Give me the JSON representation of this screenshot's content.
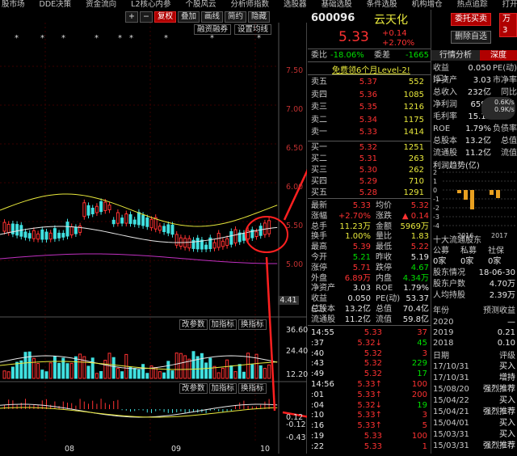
{
  "menu": [
    "股市场",
    "DDE决策",
    "资金流向",
    "L2核心内参",
    "个股风云",
    "分析师指数",
    "选股器",
    "基础选股",
    "条件选股",
    "机构增仓",
    "热点追踪",
    "打开"
  ],
  "toolbar": {
    "plus": "+",
    "minus": "−",
    "fq": "复权",
    "overlay": "叠加",
    "draw": "画线",
    "simple": "简约",
    "hide": "隐藏"
  },
  "subtabs": {
    "margin": "融资融券",
    "params": "设置均线"
  },
  "chart": {
    "y_labels": [
      "7.50",
      "7.00",
      "6.50",
      "6.00",
      "5.50",
      "5.00"
    ],
    "current_price_box": "4.41",
    "vol_labels": [
      "36.60",
      "24.40",
      "12.20"
    ],
    "macd_labels": [
      "0.12",
      "-0.12",
      "-0.43"
    ],
    "ind_tabs": [
      "改参数",
      "加指标",
      "换指标"
    ],
    "x_dates": [
      "08",
      "09",
      "10"
    ],
    "star": "*"
  },
  "stock": {
    "code": "600096",
    "name": "云天化",
    "price": "5.33",
    "change": "+0.14",
    "change_pct": "+2.70%",
    "btn_order": "委托买卖",
    "btn_remove": "删除自选",
    "btn_watch": "万3"
  },
  "order_ratio": {
    "label1": "委比",
    "val1": "-18.06%",
    "label2": "委差",
    "val2": "-1665"
  },
  "banner": "免费领6个月Level-2!",
  "asks": [
    {
      "label": "卖五",
      "price": "5.37",
      "vol": "552"
    },
    {
      "label": "卖四",
      "price": "5.36",
      "vol": "1085"
    },
    {
      "label": "卖三",
      "price": "5.35",
      "vol": "1216"
    },
    {
      "label": "卖二",
      "price": "5.34",
      "vol": "1175"
    },
    {
      "label": "卖一",
      "price": "5.33",
      "vol": "1414"
    }
  ],
  "bids": [
    {
      "label": "买一",
      "price": "5.32",
      "vol": "1251"
    },
    {
      "label": "买二",
      "price": "5.31",
      "vol": "263"
    },
    {
      "label": "买三",
      "price": "5.30",
      "vol": "262"
    },
    {
      "label": "买四",
      "price": "5.29",
      "vol": "710"
    },
    {
      "label": "买五",
      "price": "5.28",
      "vol": "1291"
    }
  ],
  "stats": [
    {
      "k1": "最新",
      "v1": "5.33",
      "c1": "red",
      "k2": "均价",
      "v2": "5.32",
      "c2": "red"
    },
    {
      "k1": "涨幅",
      "v1": "+2.70%",
      "c1": "red",
      "k2": "涨跌",
      "v2": "▲ 0.14",
      "c2": "red"
    },
    {
      "k1": "总手",
      "v1": "11.23万",
      "c1": "yel",
      "k2": "金额",
      "v2": "5969万",
      "c2": "yel"
    },
    {
      "k1": "换手",
      "v1": "1.00%",
      "c1": "yel",
      "k2": "量比",
      "v2": "1.83",
      "c2": "yel"
    },
    {
      "k1": "最高",
      "v1": "5.39",
      "c1": "red",
      "k2": "最低",
      "v2": "5.22",
      "c2": "red"
    },
    {
      "k1": "今开",
      "v1": "5.21",
      "c1": "green",
      "k2": "昨收",
      "v2": "5.19",
      "c2": "wht"
    },
    {
      "k1": "涨停",
      "v1": "5.71",
      "c1": "red",
      "k2": "跌停",
      "v2": "4.67",
      "c2": "green"
    },
    {
      "k1": "外盘",
      "v1": "6.89万",
      "c1": "red",
      "k2": "内盘",
      "v2": "4.34万",
      "c2": "green"
    },
    {
      "k1": "净资产",
      "v1": "3.03",
      "c1": "wht",
      "k2": "ROE",
      "v2": "1.79%",
      "c2": "wht"
    },
    {
      "k1": "收益(二)",
      "v1": "0.050",
      "c1": "wht",
      "k2": "PE(动)",
      "v2": "53.37",
      "c2": "wht"
    },
    {
      "k1": "总股本",
      "v1": "13.2亿",
      "c1": "wht",
      "k2": "总值",
      "v2": "70.4亿",
      "c2": "wht"
    },
    {
      "k1": "流通股",
      "v1": "11.2亿",
      "c1": "wht",
      "k2": "流值",
      "v2": "59.8亿",
      "c2": "wht"
    }
  ],
  "ticks": [
    {
      "t": "14:55",
      "p": "5.33",
      "v": "37",
      "vc": "red"
    },
    {
      "t": ":37",
      "p": "5.32↓",
      "v": "45",
      "vc": "green"
    },
    {
      "t": ":40",
      "p": "5.32",
      "v": "3",
      "vc": "red"
    },
    {
      "t": ":43",
      "p": "5.32",
      "v": "229",
      "vc": "green"
    },
    {
      "t": ":49",
      "p": "5.32",
      "v": "17",
      "vc": "green"
    },
    {
      "t": "14:56",
      "p": "5.33↑",
      "v": "100",
      "vc": "red"
    },
    {
      "t": ":01",
      "p": "5.33↑",
      "v": "200",
      "vc": "red"
    },
    {
      "t": ":04",
      "p": "5.32↓",
      "v": "19",
      "vc": "green"
    },
    {
      "t": ":10",
      "p": "5.33↑",
      "v": "3",
      "vc": "red"
    },
    {
      "t": ":16",
      "p": "5.33↑",
      "v": "5",
      "vc": "red"
    },
    {
      "t": ":19",
      "p": "5.33",
      "v": "100",
      "vc": "red"
    },
    {
      "t": ":22",
      "p": "5.33",
      "v": "1",
      "vc": "red"
    }
  ],
  "right_tabs": {
    "analysis": "行情分析",
    "depth": "深度"
  },
  "right_top": [
    {
      "k": "收益(二)",
      "v": "0.050",
      "k2": "PE(动)"
    },
    {
      "k": "净资产",
      "v": "3.03",
      "k2": "市净率"
    },
    {
      "k": "总收入",
      "v": "232亿",
      "k2": "同比"
    },
    {
      "k": "净利润",
      "v": "6590",
      "k2": ""
    },
    {
      "k": "毛利率",
      "v": "15.12",
      "k2": ""
    },
    {
      "k": "ROE",
      "v": "1.79%",
      "k2": "负债率"
    },
    {
      "k": "总股本",
      "v": "13.2亿",
      "k2": "总值"
    },
    {
      "k": "流通股",
      "v": "11.2亿",
      "k2": "流值"
    }
  ],
  "speed": [
    "0.6K/s",
    "0.9K/s"
  ],
  "profit_trend": {
    "title": "利润趋势(亿)",
    "y": [
      "2",
      "1",
      "0",
      "-1",
      "-2",
      "-3",
      "-4"
    ],
    "years": [
      "2016",
      "2017"
    ]
  },
  "holders": {
    "title": "十大流通股东",
    "cols": [
      "公募",
      "私募",
      "社保"
    ],
    "vals": [
      "0家",
      "0家",
      "0家"
    ],
    "status_k": "股东情况",
    "status_v": "18-06-30",
    "avg_k": "股东户数",
    "avg_v": "4.70万",
    "per_k": "人均持股",
    "per_v": "2.39万"
  },
  "forecast": {
    "k": "年份",
    "v": "预测收益",
    "rows": [
      {
        "y": "2020",
        "v": "—"
      },
      {
        "y": "2019",
        "v": "0.21"
      },
      {
        "y": "2018",
        "v": "0.10"
      }
    ]
  },
  "ratings": {
    "k": "日期",
    "v": "评级",
    "rows": [
      {
        "d": "17/10/31",
        "r": "买入"
      },
      {
        "d": "17/10/31",
        "r": "增持"
      },
      {
        "d": "15/08/20",
        "r": "强烈推荐"
      },
      {
        "d": "15/04/22",
        "r": "买入"
      },
      {
        "d": "15/04/21",
        "r": "强烈推荐"
      },
      {
        "d": "15/04/01",
        "r": "买入"
      },
      {
        "d": "15/03/31",
        "r": "买入"
      },
      {
        "d": "15/03/31",
        "r": "强烈推荐"
      }
    ]
  }
}
